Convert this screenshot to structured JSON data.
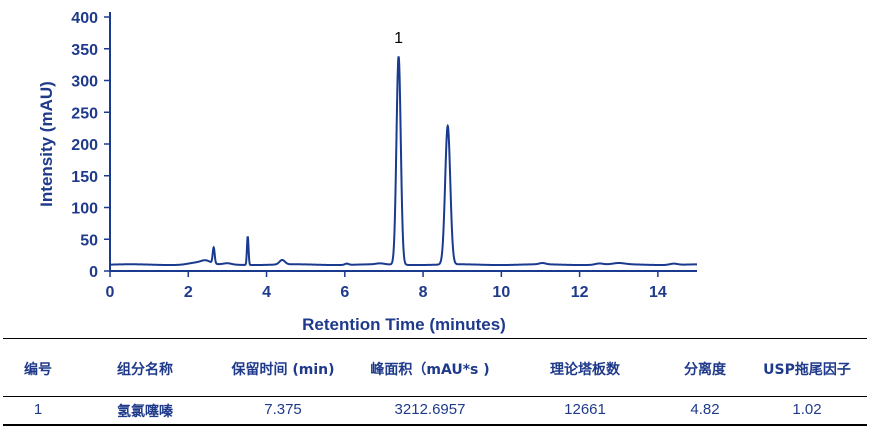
{
  "chart_data": {
    "type": "line",
    "xlabel": "Retention Time (minutes)",
    "ylabel": "Intensity (mAU)",
    "xlim": [
      0,
      15
    ],
    "ylim": [
      0,
      400
    ],
    "xticks": [
      0,
      2,
      4,
      6,
      8,
      10,
      12,
      14
    ],
    "yticks": [
      0,
      50,
      100,
      150,
      200,
      250,
      300,
      350,
      400
    ],
    "grid": false,
    "color": "#1a3a8f",
    "baseline": 10,
    "peaks": [
      {
        "rt": 2.2,
        "height": 3,
        "width": 0.2
      },
      {
        "rt": 2.45,
        "height": 5,
        "width": 0.12
      },
      {
        "rt": 2.65,
        "height": 25,
        "width": 0.025
      },
      {
        "rt": 3.0,
        "height": 2,
        "width": 0.1
      },
      {
        "rt": 3.52,
        "height": 45,
        "width": 0.02
      },
      {
        "rt": 4.4,
        "height": 7,
        "width": 0.07
      },
      {
        "rt": 6.05,
        "height": 2,
        "width": 0.05
      },
      {
        "rt": 6.9,
        "height": 1.5,
        "width": 0.1
      },
      {
        "rt": 7.375,
        "height": 328,
        "width": 0.055
      },
      {
        "rt": 8.63,
        "height": 218,
        "width": 0.065
      },
      {
        "rt": 11.05,
        "height": 2,
        "width": 0.08
      },
      {
        "rt": 12.5,
        "height": 2,
        "width": 0.1
      },
      {
        "rt": 13.0,
        "height": 2,
        "width": 0.15
      },
      {
        "rt": 14.4,
        "height": 2,
        "width": 0.1
      }
    ],
    "annotations": [
      {
        "x": 7.375,
        "y": 350,
        "text": "1"
      }
    ]
  },
  "table": {
    "headers": [
      "编号",
      "组分名称",
      "保留时间 (min)",
      "峰面积（mAU*s )",
      "理论塔板数",
      "分离度",
      "USP拖尾因子"
    ],
    "rows": [
      [
        "1",
        "氢氯噻嗪",
        "7.375",
        "3212.6957",
        "12661",
        "4.82",
        "1.02"
      ]
    ]
  }
}
